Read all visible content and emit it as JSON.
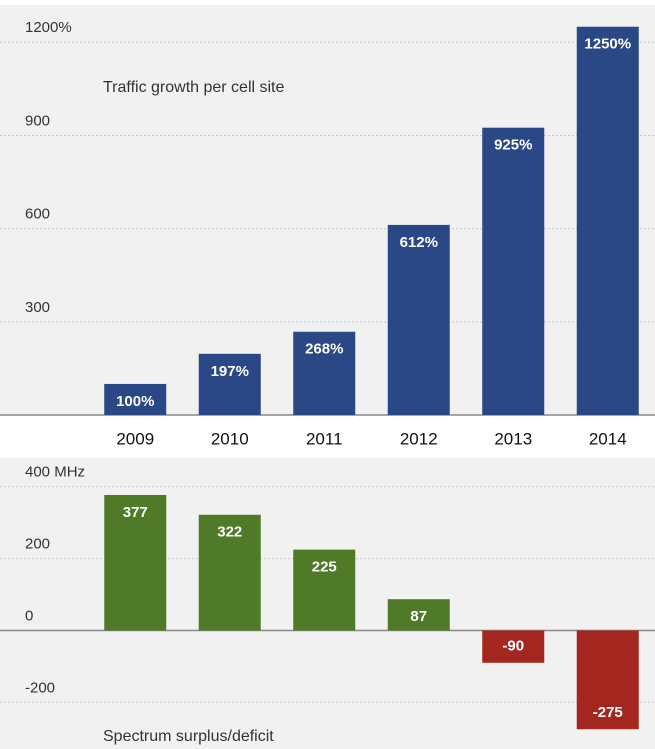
{
  "chart_data": [
    {
      "type": "bar",
      "title": "Traffic growth per cell site",
      "categories": [
        "2009",
        "2010",
        "2011",
        "2012",
        "2013",
        "2014"
      ],
      "values": [
        100,
        197,
        268,
        612,
        925,
        1250
      ],
      "value_labels": [
        "100%",
        "197%",
        "268%",
        "612%",
        "925%",
        "1250%"
      ],
      "color": "#2b4886",
      "ylim": [
        0,
        1320
      ],
      "yticks": [
        300,
        600,
        900,
        {
          "value": 1200,
          "label": "1200%"
        }
      ],
      "grid": true
    },
    {
      "type": "bar",
      "title": "Spectrum surplus/deficit",
      "values": [
        377,
        322,
        225,
        87,
        -90,
        -275
      ],
      "color": "#4f7a28",
      "negative_color": "#a3271f",
      "ylim": [
        -330,
        480
      ],
      "yticks": [
        {
          "value": 400,
          "label": "400 MHz"
        },
        200,
        0,
        -200
      ],
      "grid": true
    }
  ]
}
